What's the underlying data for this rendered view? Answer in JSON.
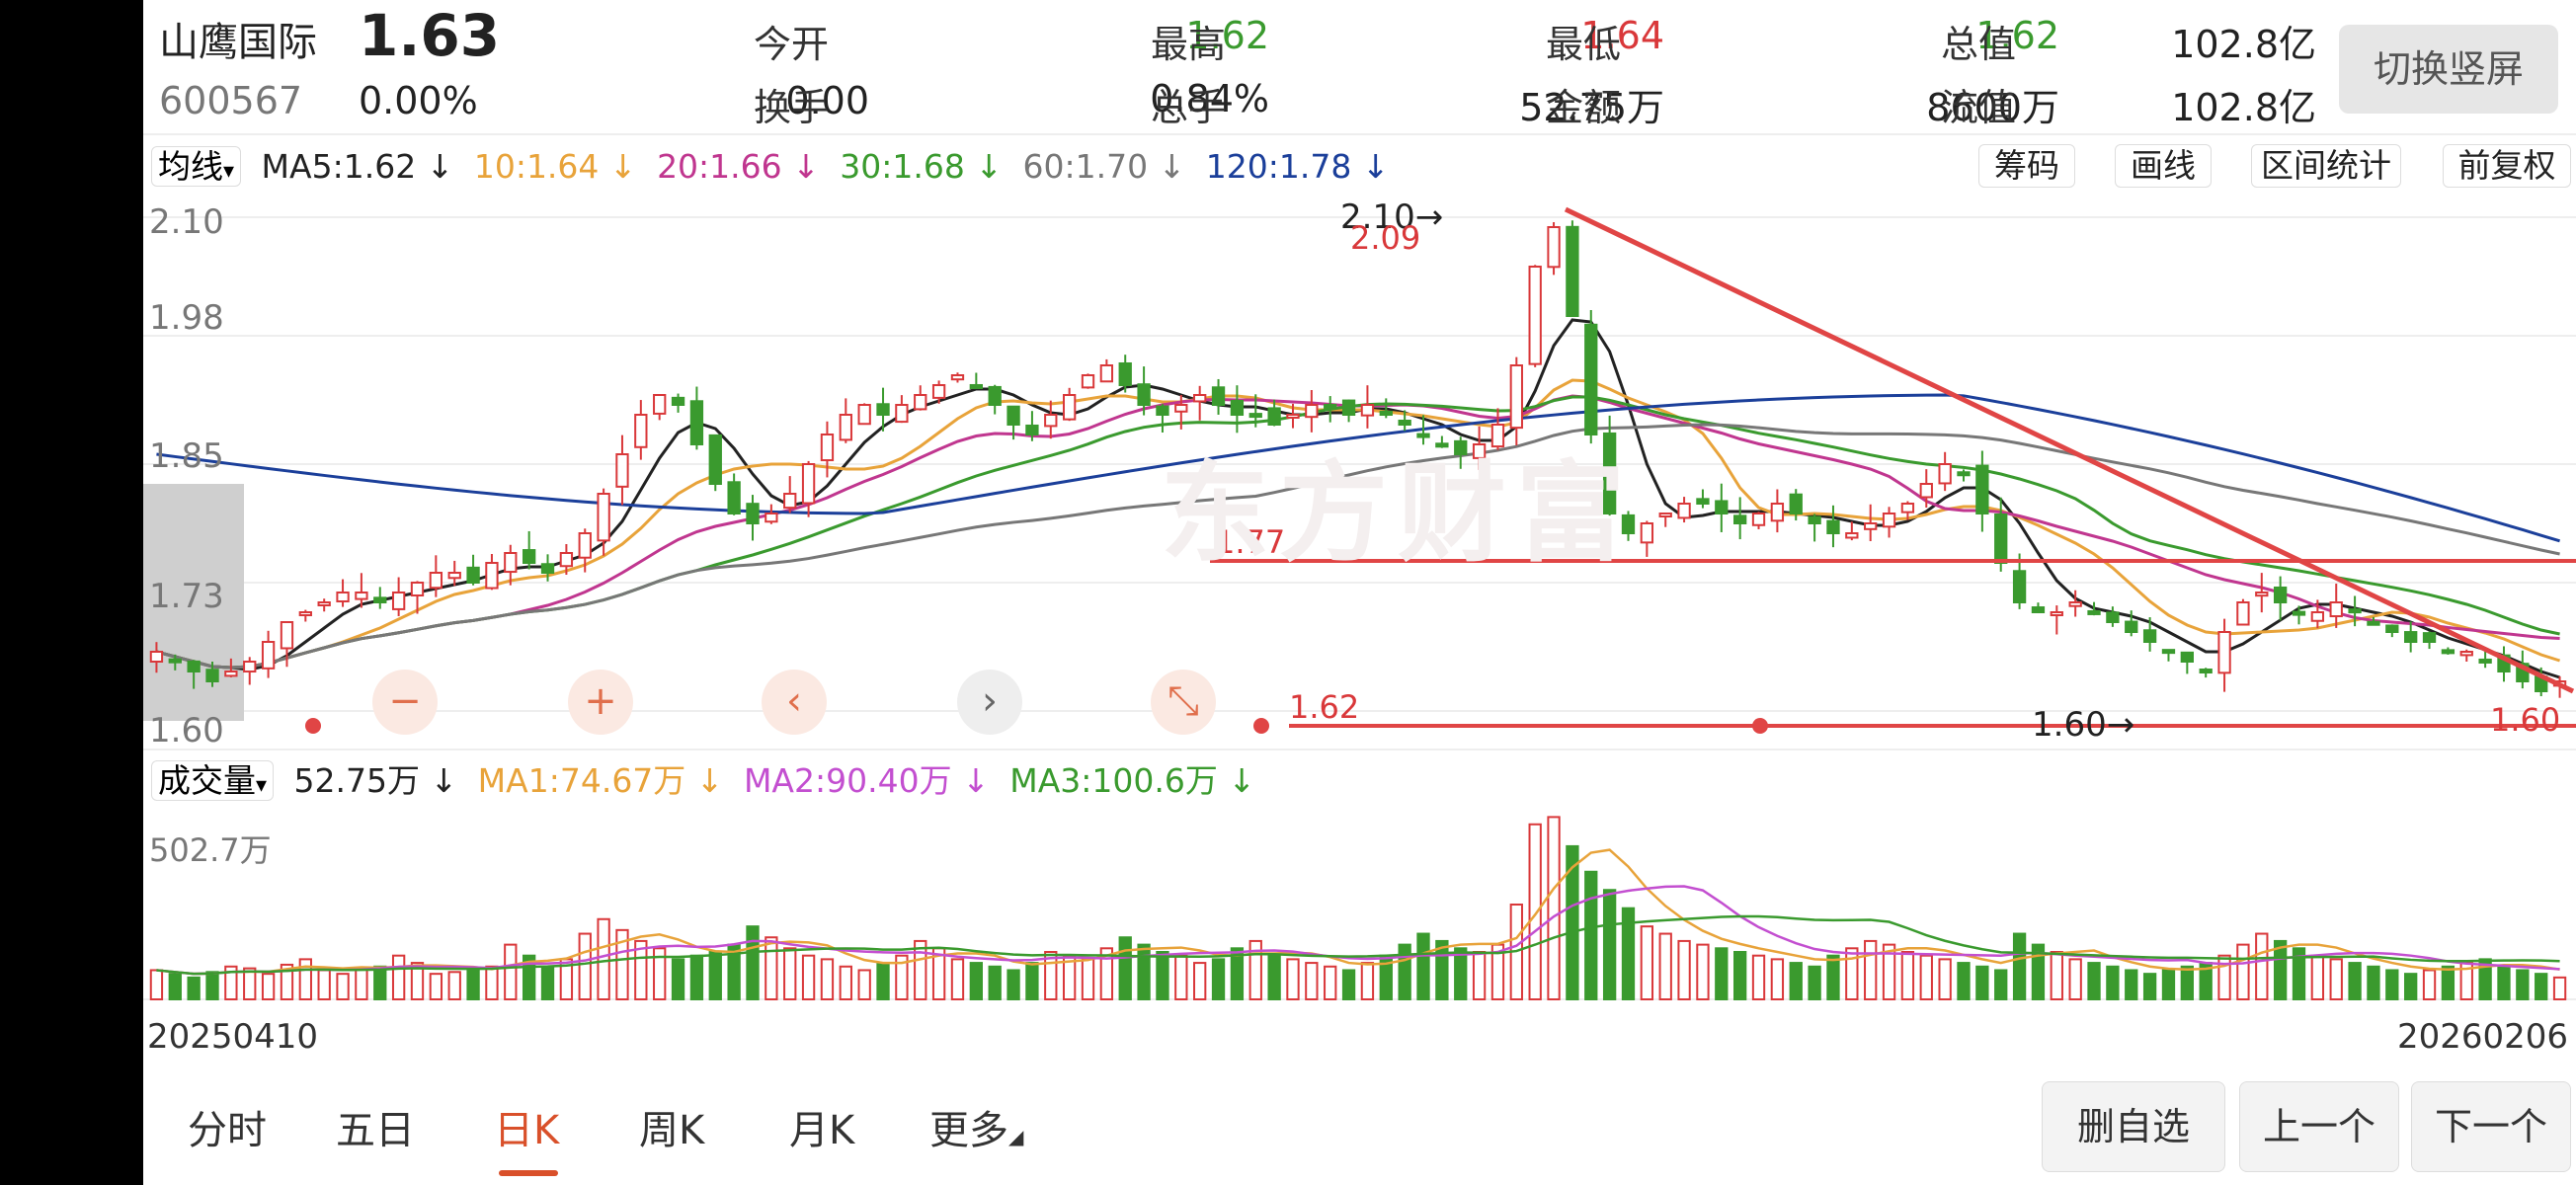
{
  "header": {
    "name": "山鹰国际",
    "price": "1.63",
    "code": "600567",
    "change_pct": "0.00%",
    "change_amt": "0.00",
    "portrait_button": "切换竖屏",
    "quotes": [
      {
        "label": "今开",
        "value": "1.62",
        "color": "#3a9a2e"
      },
      {
        "label": "最高",
        "value": "1.64",
        "color": "#d9383a"
      },
      {
        "label": "最低",
        "value": "1.62",
        "color": "#3a9a2e"
      },
      {
        "label": "总值",
        "value": "102.8亿",
        "color": "#222222"
      },
      {
        "label": "换手",
        "value": "0.84%",
        "color": "#222222"
      },
      {
        "label": "总手",
        "value": "52.75万",
        "color": "#222222"
      },
      {
        "label": "金额",
        "value": "8600万",
        "color": "#222222"
      },
      {
        "label": "流值",
        "value": "102.8亿",
        "color": "#222222"
      }
    ]
  },
  "ma_bar": {
    "selector": "均线",
    "items": [
      {
        "text": "MA5:1.62 ↓",
        "color": "#222222"
      },
      {
        "text": "10:1.64 ↓",
        "color": "#e8a33a"
      },
      {
        "text": "20:1.66 ↓",
        "color": "#c0368f"
      },
      {
        "text": "30:1.68 ↓",
        "color": "#3a9a2e"
      },
      {
        "text": "60:1.70 ↓",
        "color": "#777777"
      },
      {
        "text": "120:1.78 ↓",
        "color": "#1b3f9a"
      }
    ],
    "buttons": [
      "筹码",
      "画线",
      "区间统计",
      "前复权"
    ]
  },
  "price_chart": {
    "y_ticks": [
      "2.10",
      "1.98",
      "1.85",
      "1.73",
      "1.60"
    ],
    "high_label": "2.10",
    "high_label_red": "2.09",
    "line_177": "1.77",
    "line_162": "1.62",
    "low_label": "1.60",
    "last_label": "1.60",
    "watermark": "东方财富"
  },
  "zoom_controls": [
    {
      "name": "zoom-out-button",
      "glyph": "−"
    },
    {
      "name": "zoom-in-button",
      "glyph": "+"
    },
    {
      "name": "pan-left-button",
      "glyph": "‹"
    },
    {
      "name": "pan-right-button",
      "glyph": "›"
    },
    {
      "name": "collapse-button",
      "glyph": "⤡"
    }
  ],
  "volume_bar": {
    "selector": "成交量",
    "value": "52.75万 ↓",
    "items": [
      {
        "text": "MA1:74.67万 ↓",
        "color": "#e8a33a"
      },
      {
        "text": "MA2:90.40万 ↓",
        "color": "#c34fd0"
      },
      {
        "text": "MA3:100.6万 ↓",
        "color": "#3a9a2e"
      }
    ],
    "max_label": "502.7万"
  },
  "dates": {
    "start": "20250410",
    "end": "20260206"
  },
  "tabs": [
    "分时",
    "五日",
    "日K",
    "周K",
    "月K",
    "更多"
  ],
  "active_tab": "日K",
  "bottom_buttons": [
    "删自选",
    "上一个",
    "下一个"
  ],
  "chart_data": {
    "type": "candlestick",
    "ylim": [
      1.6,
      2.1
    ],
    "close_series_approx": [
      1.66,
      1.65,
      1.64,
      1.63,
      1.64,
      1.65,
      1.67,
      1.69,
      1.7,
      1.71,
      1.72,
      1.72,
      1.71,
      1.72,
      1.73,
      1.74,
      1.74,
      1.73,
      1.75,
      1.76,
      1.75,
      1.74,
      1.76,
      1.78,
      1.82,
      1.86,
      1.9,
      1.92,
      1.91,
      1.87,
      1.83,
      1.8,
      1.79,
      1.8,
      1.82,
      1.85,
      1.88,
      1.9,
      1.91,
      1.9,
      1.91,
      1.92,
      1.93,
      1.94,
      1.93,
      1.91,
      1.89,
      1.88,
      1.9,
      1.92,
      1.94,
      1.95,
      1.93,
      1.91,
      1.9,
      1.91,
      1.92,
      1.91,
      1.9,
      1.9,
      1.89,
      1.9,
      1.91,
      1.91,
      1.9,
      1.91,
      1.9,
      1.89,
      1.88,
      1.87,
      1.86,
      1.87,
      1.89,
      1.95,
      2.05,
      2.09,
      2.0,
      1.88,
      1.8,
      1.78,
      1.79,
      1.8,
      1.81,
      1.81,
      1.8,
      1.79,
      1.8,
      1.81,
      1.8,
      1.79,
      1.78,
      1.78,
      1.79,
      1.8,
      1.81,
      1.83,
      1.85,
      1.84,
      1.8,
      1.75,
      1.71,
      1.7,
      1.7,
      1.71,
      1.7,
      1.69,
      1.68,
      1.67,
      1.66,
      1.65,
      1.64,
      1.68,
      1.71,
      1.72,
      1.71,
      1.7,
      1.7,
      1.71,
      1.7,
      1.69,
      1.68,
      1.67,
      1.67,
      1.66,
      1.66,
      1.65,
      1.64,
      1.63,
      1.62,
      1.63
    ],
    "volume_approx": [
      80,
      70,
      60,
      75,
      90,
      85,
      70,
      95,
      110,
      80,
      70,
      85,
      90,
      120,
      100,
      70,
      75,
      80,
      90,
      150,
      120,
      90,
      110,
      180,
      220,
      190,
      160,
      140,
      110,
      120,
      130,
      150,
      200,
      170,
      140,
      120,
      110,
      90,
      80,
      100,
      120,
      160,
      140,
      110,
      100,
      90,
      80,
      100,
      130,
      120,
      110,
      140,
      170,
      150,
      130,
      120,
      100,
      110,
      140,
      160,
      120,
      110,
      100,
      90,
      80,
      100,
      120,
      150,
      180,
      160,
      140,
      130,
      150,
      260,
      480,
      500,
      420,
      350,
      300,
      250,
      200,
      180,
      160,
      150,
      140,
      130,
      120,
      110,
      100,
      90,
      120,
      140,
      160,
      150,
      130,
      120,
      110,
      100,
      90,
      80,
      180,
      150,
      130,
      110,
      100,
      90,
      80,
      70,
      80,
      90,
      100,
      120,
      150,
      180,
      160,
      140,
      120,
      110,
      100,
      90,
      80,
      70,
      80,
      90,
      100,
      110,
      90,
      80,
      70,
      60
    ]
  }
}
